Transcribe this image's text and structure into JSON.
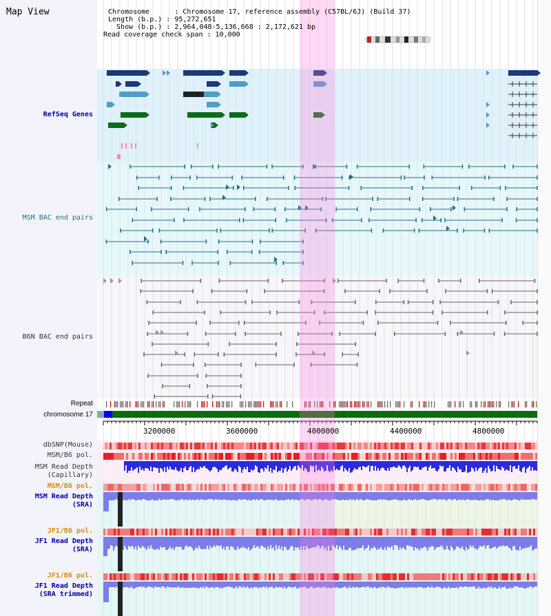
{
  "header": {
    "title": "Map View",
    "chromosome_line": "Chromosome      : Chromosome 17, reference assembly (C57BL/6J) (Build 37)",
    "length_line": "Length (b.p.) : 95,272,651",
    "show_line": "  Show (b.p.) : 2,964,048-5,136,668 : 2,172,621 bp",
    "coverage_line": "Read coverage check span : 10,000"
  },
  "tracks": {
    "refseq": "RefSeq Genes",
    "msm_bac": "MSM BAC end pairs",
    "b6n_bac": "B6N BAC end pairs",
    "repeat": "Repeat",
    "chromosome": "chromosome 17",
    "dbsnp": "dbSNP(Mouse)",
    "msm_b6_pol_1": "MSM/B6 pol.",
    "msm_depth_cap_1": "MSM Read Depth",
    "msm_depth_cap_2": "(Capillary)",
    "msm_b6_pol_2": "MSM/B6 pol.",
    "msm_depth_sra_1": "MSM Read Depth",
    "msm_depth_sra_2": "(SRA)",
    "jf1_pol_1": "JF1/B6 pol.",
    "jf1_depth_sra_1": "JF1 Read Depth",
    "jf1_depth_sra_2": "(SRA)",
    "jf1_pol_2": "JF1/B6 pol.",
    "jf1_depth_trim_1": "JF1 Read Depth",
    "jf1_depth_trim_2": "(SRA trimmed)"
  },
  "axis": {
    "ticks": [
      "3200000",
      "3600000",
      "4000000",
      "4400000",
      "4800000"
    ]
  },
  "colors": {
    "refseq_bg": "#dff1fb",
    "gene_dark": "#1a3a78",
    "gene_mid": "#4f9ec6",
    "gene_green": "#0d6b1c",
    "msm_line": "#1f6e8a",
    "b6n_line": "#666666",
    "depth_blue": "#2a2ae0",
    "depth_light": "#7d7de8",
    "highlight": "#ff78dc"
  }
}
